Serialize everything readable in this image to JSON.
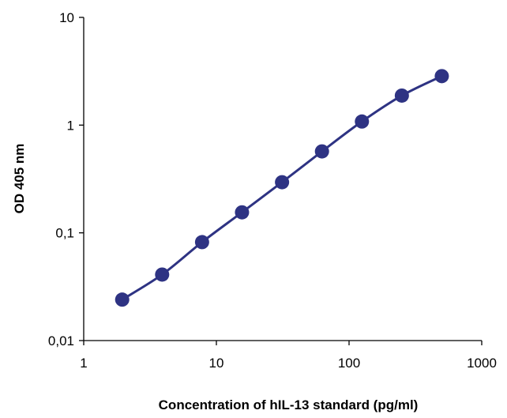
{
  "chart_data": {
    "type": "line",
    "title": "",
    "xlabel": "Concentration of hIL-13 standard  (pg/ml)",
    "ylabel": "OD 405 nm",
    "x_scale": "log",
    "y_scale": "log",
    "xlim": [
      1,
      1000
    ],
    "ylim": [
      0.01,
      10
    ],
    "x_ticks": [
      1,
      10,
      100,
      1000
    ],
    "x_tick_labels": [
      "1",
      "10",
      "100",
      "1000"
    ],
    "y_ticks": [
      0.01,
      0.1,
      1,
      10
    ],
    "y_tick_labels": [
      "0,01",
      "0,1",
      "1",
      "10"
    ],
    "grid": false,
    "legend": "none",
    "color": "#2e3383",
    "series": [
      {
        "x": [
          1.95,
          3.9,
          7.8,
          15.6,
          31.25,
          62.5,
          125,
          250,
          500
        ],
        "y": [
          0.024,
          0.041,
          0.082,
          0.155,
          0.295,
          0.57,
          1.08,
          1.88,
          2.85
        ]
      }
    ]
  }
}
